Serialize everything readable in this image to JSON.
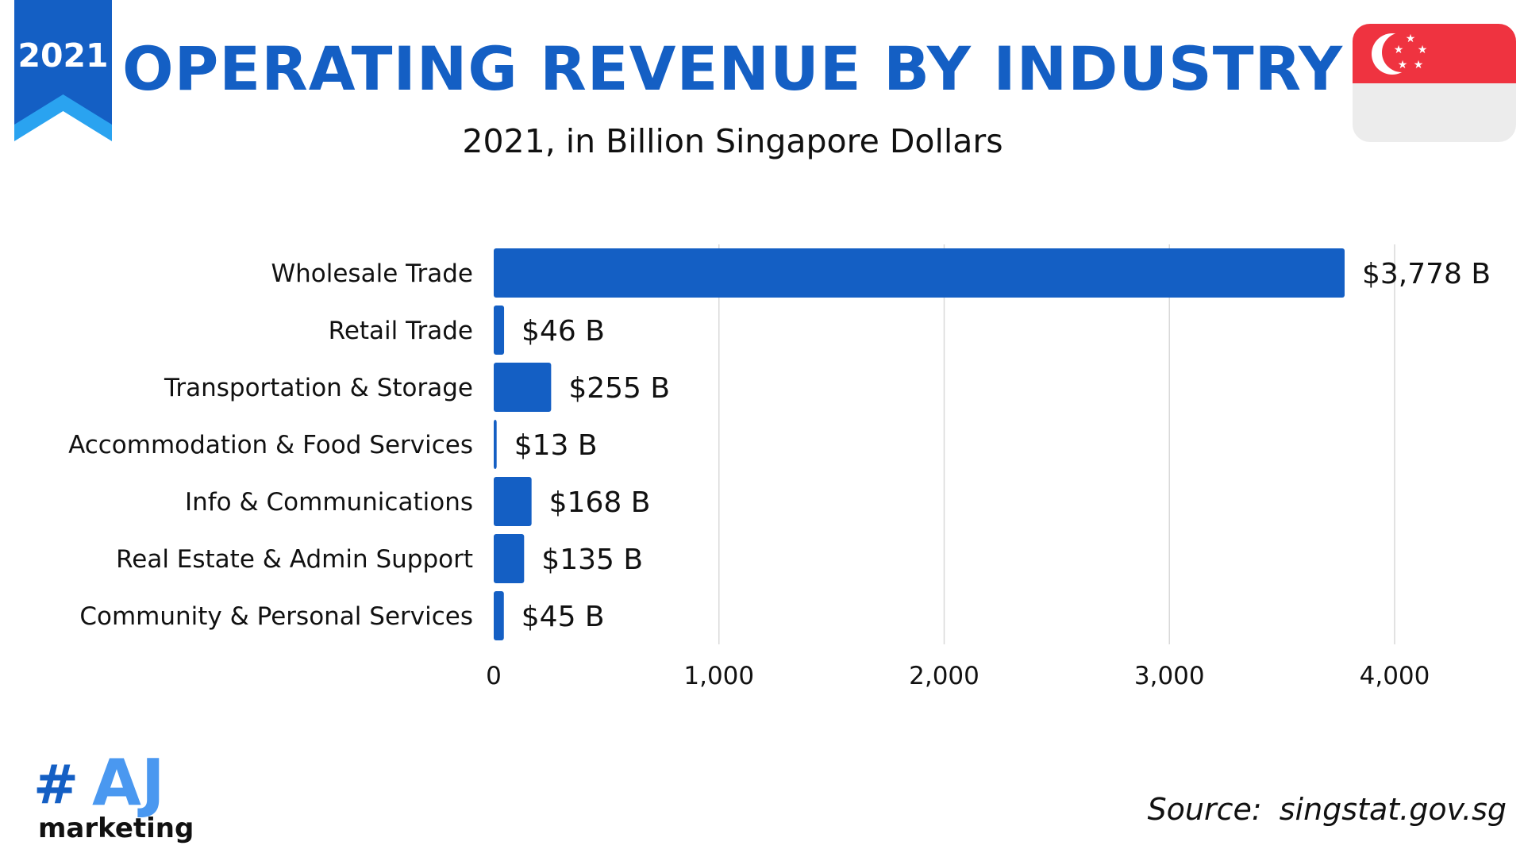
{
  "badge": {
    "year": "2021"
  },
  "header": {
    "title": "OPERATING REVENUE BY INDUSTRY",
    "subtitle": "2021, in Billion Singapore Dollars"
  },
  "colors": {
    "accent": "#145fc4",
    "ribbon_light": "#2aa3f0",
    "bar": "#145fc4",
    "grid": "#d9d9d9",
    "flag_red": "#ef3340",
    "flag_white": "#ececec"
  },
  "chart_data": {
    "type": "bar",
    "orientation": "horizontal",
    "categories": [
      "Wholesale Trade",
      "Retail Trade",
      "Transportation & Storage",
      "Accommodation & Food Services",
      "Info & Communications",
      "Real Estate & Admin Support",
      "Community & Personal Services"
    ],
    "values": [
      3778,
      46,
      255,
      13,
      168,
      135,
      45
    ],
    "value_labels": [
      "$3,778 B",
      "$46 B",
      "$255 B",
      "$13 B",
      "$168 B",
      "$135 B",
      "$45 B"
    ],
    "xlim": [
      0,
      4000
    ],
    "xticks": [
      0,
      1000,
      2000,
      3000,
      4000
    ],
    "xtick_labels": [
      "0",
      "1,000",
      "2,000",
      "3,000",
      "4,000"
    ],
    "grid": true,
    "legend": "none"
  },
  "logo": {
    "hash": "#",
    "letters": "AJ",
    "word": "marketing"
  },
  "source": {
    "label": "Source:",
    "site": "singstat.gov.sg"
  }
}
